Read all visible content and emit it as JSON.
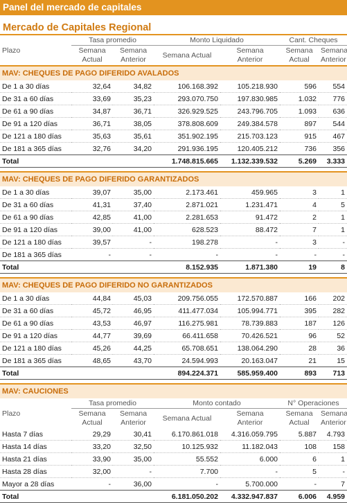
{
  "title": "Panel del mercado de capitales",
  "subtitle": "Mercado de Capitales Regional",
  "headers": {
    "plazo": "Plazo",
    "tasa": "Tasa promedio",
    "monto_liq": "Monto Liquidado",
    "cant_cheques": "Cant. Cheques",
    "monto_contado": "Monto contado",
    "n_operaciones": "N° Operaciones",
    "semana_actual_2l": "Semana\nActual",
    "semana_anterior_2l": "Semana\nAnterior",
    "semana_actual": "Semana Actual"
  },
  "total_label": "Total",
  "sections": [
    {
      "title": "MAV: CHEQUES DE PAGO DIFERIDO AVALADOS",
      "rows": [
        [
          "De 1 a 30 días",
          "32,64",
          "34,82",
          "106.168.392",
          "105.218.930",
          "596",
          "554"
        ],
        [
          "De 31 a 60 días",
          "33,69",
          "35,23",
          "293.070.750",
          "197.830.985",
          "1.032",
          "776"
        ],
        [
          "De 61 a 90 días",
          "34,87",
          "36,71",
          "326.929.525",
          "243.796.705",
          "1.093",
          "636"
        ],
        [
          "De 91 a 120 días",
          "36,71",
          "38,05",
          "378.808.609",
          "249.384.578",
          "897",
          "544"
        ],
        [
          "De 121 a 180 días",
          "35,63",
          "35,61",
          "351.902.195",
          "215.703.123",
          "915",
          "467"
        ],
        [
          "De 181 a 365 días",
          "32,76",
          "34,20",
          "291.936.195",
          "120.405.212",
          "736",
          "356"
        ]
      ],
      "total": [
        "",
        "",
        "1.748.815.665",
        "1.132.339.532",
        "5.269",
        "3.333"
      ]
    },
    {
      "title": "MAV: CHEQUES DE PAGO DIFERIDO GARANTIZADOS",
      "rows": [
        [
          "De 1 a 30 días",
          "39,07",
          "35,00",
          "2.173.461",
          "459.965",
          "3",
          "1"
        ],
        [
          "De 31 a 60 días",
          "41,31",
          "37,40",
          "2.871.021",
          "1.231.471",
          "4",
          "5"
        ],
        [
          "De 61 a 90 días",
          "42,85",
          "41,00",
          "2.281.653",
          "91.472",
          "2",
          "1"
        ],
        [
          "De 91 a 120 días",
          "39,00",
          "41,00",
          "628.523",
          "88.472",
          "7",
          "1"
        ],
        [
          "De 121 a 180 días",
          "39,57",
          "-",
          "198.278",
          "-",
          "3",
          "-"
        ],
        [
          "De 181 a 365 días",
          "-",
          "-",
          "-",
          "-",
          "-",
          "-"
        ]
      ],
      "total": [
        "",
        "",
        "8.152.935",
        "1.871.380",
        "19",
        "8"
      ]
    },
    {
      "title": "MAV: CHEQUES DE PAGO DIFERIDO NO GARANTIZADOS",
      "rows": [
        [
          "De 1 a 30 días",
          "44,84",
          "45,03",
          "209.756.055",
          "172.570.887",
          "166",
          "202"
        ],
        [
          "De 31 a 60 días",
          "45,72",
          "46,95",
          "411.477.034",
          "105.994.771",
          "395",
          "282"
        ],
        [
          "De 61 a 90 días",
          "43,53",
          "46,97",
          "116.275.981",
          "78.739.883",
          "187",
          "126"
        ],
        [
          "De 91 a 120 días",
          "44,77",
          "39,69",
          "66.411.658",
          "70.426.521",
          "96",
          "52"
        ],
        [
          "De 121 a 180 días",
          "45,26",
          "44,25",
          "65.708.651",
          "138.064.290",
          "28",
          "36"
        ],
        [
          "De 181 a 365 días",
          "48,65",
          "43,70",
          "24.594.993",
          "20.163.047",
          "21",
          "15"
        ]
      ],
      "total": [
        "",
        "",
        "894.224.371",
        "585.959.400",
        "893",
        "713"
      ]
    },
    {
      "title": "MAV: CAUCIONES",
      "rows": [
        [
          "Hasta 7 días",
          "29,29",
          "30,41",
          "6.170.861.018",
          "4.316.059.795",
          "5.887",
          "4.793"
        ],
        [
          "Hasta 14 días",
          "33,20",
          "32,50",
          "10.125.932",
          "11.182.043",
          "108",
          "158"
        ],
        [
          "Hasta 21 días",
          "33,90",
          "35,00",
          "55.552",
          "6.000",
          "6",
          "1"
        ],
        [
          "Hasta 28 días",
          "32,00",
          "-",
          "7.700",
          "-",
          "5",
          "-"
        ],
        [
          "Mayor a 28 días",
          "-",
          "36,00",
          "-",
          "5.700.000",
          "-",
          "7"
        ]
      ],
      "total": [
        "",
        "",
        "6.181.050.202",
        "4.332.947.837",
        "6.006",
        "4.959"
      ]
    }
  ]
}
